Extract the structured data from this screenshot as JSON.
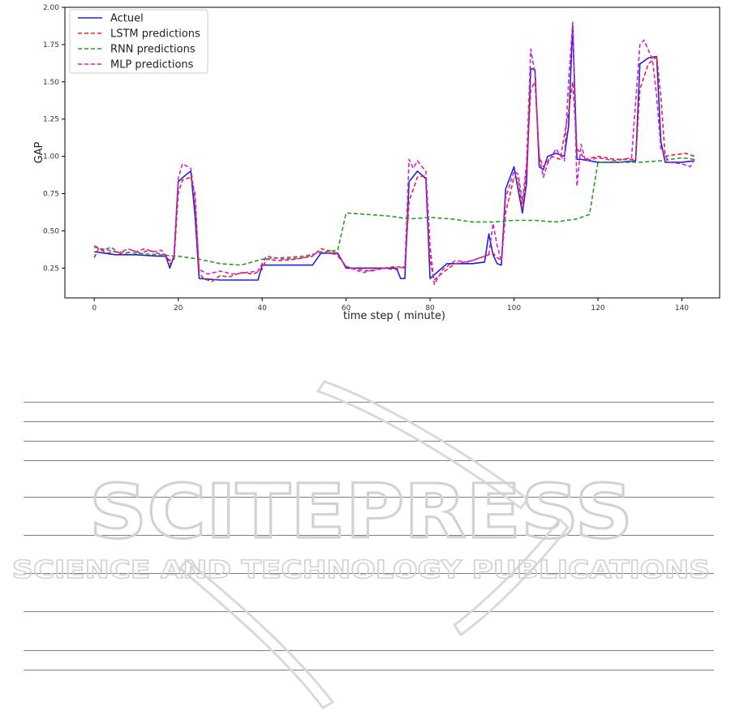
{
  "colors": {
    "Actuel": "#2020e0",
    "LSTM predictions": "#ee2222",
    "RNN predictions": "#22a022",
    "MLP predictions": "#d020d0",
    "watermark": "#d2d2d2",
    "rules": "#7f7f7f"
  },
  "chart_data": {
    "type": "line",
    "title": "",
    "xlabel": "time step ( minute)",
    "ylabel": "GAP",
    "xlim": [
      -7,
      149
    ],
    "ylim": [
      0.05,
      2.0
    ],
    "xticks": [
      0,
      20,
      40,
      60,
      80,
      100,
      120,
      140
    ],
    "yticks": [
      0.25,
      0.5,
      0.75,
      1.0,
      1.25,
      1.5,
      1.75,
      2.0
    ],
    "ytick_labels": [
      "0.25",
      "0.50",
      "0.75",
      "1.00",
      "1.25",
      "1.50",
      "1.75",
      "2.00"
    ],
    "grid": false,
    "legend_position": "top-left",
    "series": [
      {
        "name": "Actuel",
        "style": "solid",
        "points": [
          [
            0,
            0.36
          ],
          [
            5,
            0.34
          ],
          [
            10,
            0.34
          ],
          [
            15,
            0.33
          ],
          [
            17,
            0.33
          ],
          [
            18,
            0.25
          ],
          [
            19,
            0.33
          ],
          [
            20,
            0.83
          ],
          [
            22,
            0.88
          ],
          [
            23,
            0.9
          ],
          [
            24,
            0.6
          ],
          [
            25,
            0.18
          ],
          [
            30,
            0.17
          ],
          [
            39,
            0.17
          ],
          [
            40,
            0.27
          ],
          [
            45,
            0.27
          ],
          [
            52,
            0.27
          ],
          [
            54,
            0.35
          ],
          [
            58,
            0.35
          ],
          [
            60,
            0.25
          ],
          [
            65,
            0.25
          ],
          [
            72,
            0.25
          ],
          [
            73,
            0.18
          ],
          [
            74,
            0.18
          ],
          [
            75,
            0.83
          ],
          [
            77,
            0.9
          ],
          [
            79,
            0.85
          ],
          [
            80,
            0.18
          ],
          [
            82,
            0.23
          ],
          [
            84,
            0.28
          ],
          [
            90,
            0.28
          ],
          [
            93,
            0.29
          ],
          [
            94,
            0.48
          ],
          [
            95,
            0.34
          ],
          [
            96,
            0.28
          ],
          [
            97,
            0.27
          ],
          [
            98,
            0.78
          ],
          [
            100,
            0.93
          ],
          [
            102,
            0.62
          ],
          [
            103,
            0.82
          ],
          [
            104,
            1.59
          ],
          [
            105,
            1.58
          ],
          [
            106,
            0.93
          ],
          [
            107,
            0.91
          ],
          [
            108,
            1.0
          ],
          [
            110,
            1.02
          ],
          [
            112,
            1.0
          ],
          [
            113,
            1.2
          ],
          [
            114,
            1.88
          ],
          [
            115,
            0.98
          ],
          [
            116,
            0.98
          ],
          [
            118,
            0.97
          ],
          [
            120,
            0.96
          ],
          [
            125,
            0.96
          ],
          [
            129,
            0.97
          ],
          [
            130,
            1.62
          ],
          [
            132,
            1.66
          ],
          [
            134,
            1.67
          ],
          [
            135,
            1.1
          ],
          [
            136,
            0.96
          ],
          [
            140,
            0.96
          ],
          [
            143,
            0.97
          ]
        ]
      },
      {
        "name": "LSTM predictions",
        "style": "dashed",
        "points": [
          [
            0,
            0.32
          ],
          [
            1,
            0.38
          ],
          [
            3,
            0.35
          ],
          [
            5,
            0.36
          ],
          [
            7,
            0.34
          ],
          [
            9,
            0.37
          ],
          [
            11,
            0.35
          ],
          [
            13,
            0.37
          ],
          [
            15,
            0.35
          ],
          [
            17,
            0.34
          ],
          [
            18,
            0.28
          ],
          [
            19,
            0.3
          ],
          [
            20,
            0.75
          ],
          [
            21,
            0.84
          ],
          [
            23,
            0.86
          ],
          [
            24,
            0.75
          ],
          [
            25,
            0.22
          ],
          [
            26,
            0.18
          ],
          [
            28,
            0.16
          ],
          [
            30,
            0.2
          ],
          [
            32,
            0.19
          ],
          [
            35,
            0.22
          ],
          [
            38,
            0.21
          ],
          [
            40,
            0.24
          ],
          [
            41,
            0.31
          ],
          [
            44,
            0.3
          ],
          [
            48,
            0.31
          ],
          [
            52,
            0.33
          ],
          [
            54,
            0.38
          ],
          [
            57,
            0.36
          ],
          [
            59,
            0.3
          ],
          [
            60,
            0.26
          ],
          [
            63,
            0.24
          ],
          [
            66,
            0.23
          ],
          [
            69,
            0.25
          ],
          [
            72,
            0.26
          ],
          [
            74,
            0.25
          ],
          [
            75,
            0.7
          ],
          [
            77,
            0.86
          ],
          [
            79,
            0.87
          ],
          [
            80,
            0.3
          ],
          [
            81,
            0.17
          ],
          [
            83,
            0.22
          ],
          [
            86,
            0.28
          ],
          [
            90,
            0.3
          ],
          [
            93,
            0.33
          ],
          [
            95,
            0.35
          ],
          [
            96,
            0.32
          ],
          [
            97,
            0.3
          ],
          [
            98,
            0.62
          ],
          [
            100,
            0.86
          ],
          [
            101,
            0.85
          ],
          [
            102,
            0.65
          ],
          [
            103,
            0.9
          ],
          [
            104,
            1.45
          ],
          [
            105,
            1.5
          ],
          [
            106,
            1.0
          ],
          [
            107,
            0.93
          ],
          [
            109,
            1.0
          ],
          [
            111,
            0.98
          ],
          [
            113,
            1.3
          ],
          [
            114,
            1.5
          ],
          [
            115,
            1.05
          ],
          [
            117,
            0.98
          ],
          [
            120,
            1.0
          ],
          [
            124,
            0.98
          ],
          [
            127,
            0.98
          ],
          [
            129,
            0.98
          ],
          [
            130,
            1.45
          ],
          [
            132,
            1.62
          ],
          [
            134,
            1.67
          ],
          [
            135,
            1.4
          ],
          [
            136,
            1.0
          ],
          [
            138,
            1.01
          ],
          [
            141,
            1.02
          ],
          [
            143,
            1.0
          ]
        ]
      },
      {
        "name": "RNN predictions",
        "style": "dashed",
        "points": [
          [
            0,
            0.39
          ],
          [
            5,
            0.36
          ],
          [
            10,
            0.35
          ],
          [
            15,
            0.34
          ],
          [
            20,
            0.33
          ],
          [
            25,
            0.31
          ],
          [
            30,
            0.28
          ],
          [
            35,
            0.27
          ],
          [
            40,
            0.31
          ],
          [
            45,
            0.32
          ],
          [
            50,
            0.33
          ],
          [
            55,
            0.36
          ],
          [
            58,
            0.37
          ],
          [
            60,
            0.62
          ],
          [
            65,
            0.61
          ],
          [
            70,
            0.6
          ],
          [
            75,
            0.58
          ],
          [
            80,
            0.59
          ],
          [
            85,
            0.58
          ],
          [
            90,
            0.56
          ],
          [
            95,
            0.56
          ],
          [
            100,
            0.57
          ],
          [
            105,
            0.57
          ],
          [
            110,
            0.56
          ],
          [
            115,
            0.58
          ],
          [
            118,
            0.61
          ],
          [
            120,
            0.96
          ],
          [
            125,
            0.96
          ],
          [
            130,
            0.96
          ],
          [
            135,
            0.97
          ],
          [
            140,
            0.99
          ],
          [
            143,
            0.98
          ]
        ]
      },
      {
        "name": "MLP predictions",
        "style": "dashed",
        "points": [
          [
            0,
            0.4
          ],
          [
            2,
            0.37
          ],
          [
            4,
            0.39
          ],
          [
            6,
            0.35
          ],
          [
            8,
            0.38
          ],
          [
            10,
            0.36
          ],
          [
            12,
            0.38
          ],
          [
            14,
            0.36
          ],
          [
            16,
            0.37
          ],
          [
            18,
            0.3
          ],
          [
            19,
            0.33
          ],
          [
            20,
            0.85
          ],
          [
            21,
            0.95
          ],
          [
            23,
            0.92
          ],
          [
            24,
            0.7
          ],
          [
            25,
            0.24
          ],
          [
            27,
            0.21
          ],
          [
            30,
            0.23
          ],
          [
            33,
            0.21
          ],
          [
            36,
            0.22
          ],
          [
            39,
            0.23
          ],
          [
            41,
            0.33
          ],
          [
            45,
            0.31
          ],
          [
            50,
            0.32
          ],
          [
            54,
            0.36
          ],
          [
            58,
            0.34
          ],
          [
            60,
            0.26
          ],
          [
            64,
            0.22
          ],
          [
            68,
            0.25
          ],
          [
            72,
            0.24
          ],
          [
            74,
            0.26
          ],
          [
            75,
            0.98
          ],
          [
            76,
            0.92
          ],
          [
            77,
            0.97
          ],
          [
            79,
            0.9
          ],
          [
            80,
            0.4
          ],
          [
            81,
            0.14
          ],
          [
            83,
            0.24
          ],
          [
            86,
            0.3
          ],
          [
            89,
            0.29
          ],
          [
            92,
            0.32
          ],
          [
            94,
            0.34
          ],
          [
            95,
            0.55
          ],
          [
            96,
            0.4
          ],
          [
            97,
            0.3
          ],
          [
            98,
            0.72
          ],
          [
            100,
            0.9
          ],
          [
            101,
            0.88
          ],
          [
            102,
            0.7
          ],
          [
            103,
            0.95
          ],
          [
            104,
            1.72
          ],
          [
            105,
            1.55
          ],
          [
            106,
            1.0
          ],
          [
            107,
            0.86
          ],
          [
            108,
            0.95
          ],
          [
            110,
            1.05
          ],
          [
            112,
            0.97
          ],
          [
            113,
            1.5
          ],
          [
            114,
            1.9
          ],
          [
            115,
            0.8
          ],
          [
            116,
            1.08
          ],
          [
            117,
            0.97
          ],
          [
            120,
            0.99
          ],
          [
            124,
            0.97
          ],
          [
            128,
            0.99
          ],
          [
            130,
            1.75
          ],
          [
            131,
            1.78
          ],
          [
            133,
            1.65
          ],
          [
            134,
            1.4
          ],
          [
            135,
            1.05
          ],
          [
            137,
            0.96
          ],
          [
            140,
            0.95
          ],
          [
            142,
            0.93
          ],
          [
            143,
            0.98
          ]
        ]
      }
    ]
  },
  "watermark": {
    "brand": "SCITEPRESS",
    "tagline": "SCIENCE AND TECHNOLOGY PUBLICATIONS"
  }
}
